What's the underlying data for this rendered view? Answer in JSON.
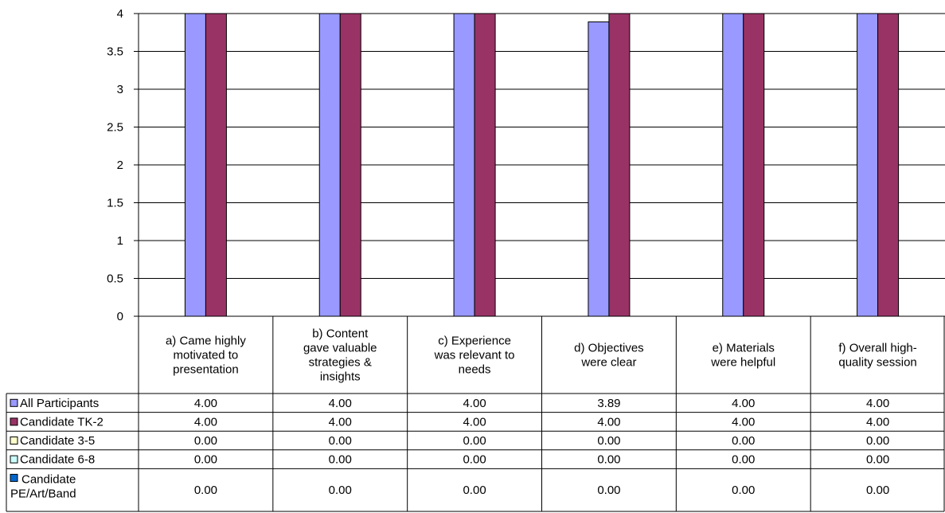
{
  "chart_data": {
    "type": "bar",
    "title": "",
    "xlabel": "",
    "ylabel": "",
    "ylim": [
      0,
      4
    ],
    "yticks": [
      "0",
      "0.5",
      "1",
      "1.5",
      "2",
      "2.5",
      "3",
      "3.5",
      "4"
    ],
    "grid": true,
    "legend": "data-table-left",
    "categories": [
      "a) Came highly motivated to presentation",
      "b) Content gave valuable strategies & insights",
      "c) Experience was relevant to needs",
      "d) Objectives were clear",
      "e) Materials were helpful",
      "f) Overall high-quality session"
    ],
    "category_lines": [
      [
        "a) Came highly",
        "motivated to",
        "presentation"
      ],
      [
        "b) Content",
        "gave valuable",
        "strategies &",
        "insights"
      ],
      [
        "c) Experience",
        "was relevant to",
        "needs"
      ],
      [
        "d) Objectives",
        "were clear"
      ],
      [
        "e) Materials",
        "were helpful"
      ],
      [
        "f) Overall high-",
        "quality session"
      ]
    ],
    "series": [
      {
        "name": "All Participants",
        "name_lines": [
          "All Participants"
        ],
        "color": "#9999ff",
        "values": [
          4.0,
          4.0,
          4.0,
          3.89,
          4.0,
          4.0
        ],
        "labels": [
          "4.00",
          "4.00",
          "4.00",
          "3.89",
          "4.00",
          "4.00"
        ]
      },
      {
        "name": "Candidate TK-2",
        "name_lines": [
          "Candidate TK-2"
        ],
        "color": "#993366",
        "values": [
          4.0,
          4.0,
          4.0,
          4.0,
          4.0,
          4.0
        ],
        "labels": [
          "4.00",
          "4.00",
          "4.00",
          "4.00",
          "4.00",
          "4.00"
        ]
      },
      {
        "name": "Candidate 3-5",
        "name_lines": [
          "Candidate 3-5"
        ],
        "color": "#ffffcc",
        "values": [
          0,
          0,
          0,
          0,
          0,
          0
        ],
        "labels": [
          "0.00",
          "0.00",
          "0.00",
          "0.00",
          "0.00",
          "0.00"
        ]
      },
      {
        "name": "Candidate 6-8",
        "name_lines": [
          "Candidate 6-8"
        ],
        "color": "#ccffff",
        "values": [
          0,
          0,
          0,
          0,
          0,
          0
        ],
        "labels": [
          "0.00",
          "0.00",
          "0.00",
          "0.00",
          "0.00",
          "0.00"
        ]
      },
      {
        "name": "Candidate PE/Art/Band",
        "name_lines": [
          "Candidate",
          "PE/Art/Band"
        ],
        "color": "#0066cc",
        "values": [
          0,
          0,
          0,
          0,
          0,
          0
        ],
        "labels": [
          "0.00",
          "0.00",
          "0.00",
          "0.00",
          "0.00",
          "0.00"
        ]
      }
    ]
  }
}
